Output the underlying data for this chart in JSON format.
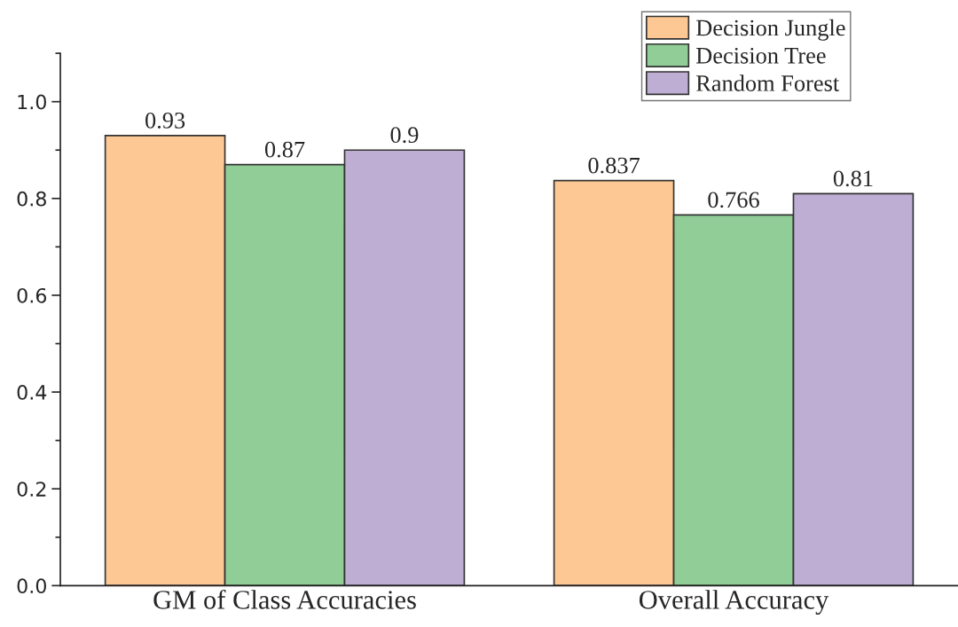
{
  "chart_data": {
    "type": "bar",
    "categories": [
      "GM of Class Accuracies",
      "Overall Accuracy"
    ],
    "series": [
      {
        "name": "Decision Jungle",
        "color": "#fdc894",
        "values": [
          0.93,
          0.837
        ]
      },
      {
        "name": "Decision Tree",
        "color": "#90cd97",
        "values": [
          0.87,
          0.766
        ]
      },
      {
        "name": "Random Forest",
        "color": "#bfaed4",
        "values": [
          0.9,
          0.81
        ]
      }
    ],
    "ylim": [
      0,
      1.1
    ],
    "yticks": [
      {
        "value": 0,
        "label": "0.0"
      },
      0.2,
      0.4,
      0.6,
      0.8,
      {
        "value": 1,
        "label": "1.0"
      }
    ],
    "data_labels": true,
    "legend": "top right",
    "grid": false
  }
}
